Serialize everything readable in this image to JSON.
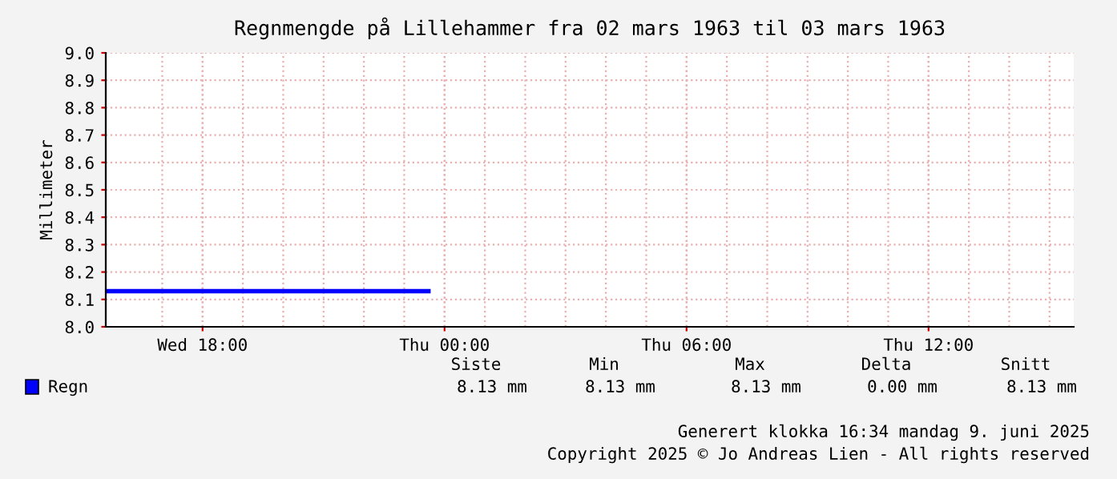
{
  "chart_data": {
    "type": "line",
    "title": "Regnmengde på Lillehammer fra 02 mars 1963 til 03 mars 1963",
    "ylabel": "Millimeter",
    "series": [
      {
        "name": "Regn",
        "color": "#0000ff",
        "x": [
          "1963-02-27T15:36",
          "1963-02-27T23:36"
        ],
        "values": [
          8.13,
          8.13
        ]
      }
    ],
    "xlim": [
      "1963-02-27T15:36",
      "1963-02-28T15:36"
    ],
    "xticks": [
      {
        "value": "1963-02-27T18:00",
        "label": "Wed 18:00"
      },
      {
        "value": "1963-02-28T00:00",
        "label": "Thu 00:00"
      },
      {
        "value": "1963-02-28T06:00",
        "label": "Thu 06:00"
      },
      {
        "value": "1963-02-28T12:00",
        "label": "Thu 12:00"
      }
    ],
    "ylim": [
      8.0,
      9.0
    ],
    "yticks": [
      {
        "value": 8.0,
        "label": "8.0"
      },
      8.1,
      8.2,
      8.3,
      8.4,
      8.5,
      8.6,
      8.7,
      8.8,
      8.9,
      {
        "value": 9.0,
        "label": "9.0"
      }
    ],
    "grid": true,
    "legend": "bottom left",
    "marker": "none",
    "line_style": "solid",
    "annotations": [
      "Siste",
      "Min",
      "Max",
      "Delta",
      "Snitt",
      "8.13 mm",
      "8.13 mm",
      "8.13 mm",
      "0.00 mm",
      "8.13 mm",
      "Generert klokka 16:34 mandag 9. juni 2025",
      "Copyright 2025 © Jo Andreas Lien - All rights reserved"
    ]
  }
}
